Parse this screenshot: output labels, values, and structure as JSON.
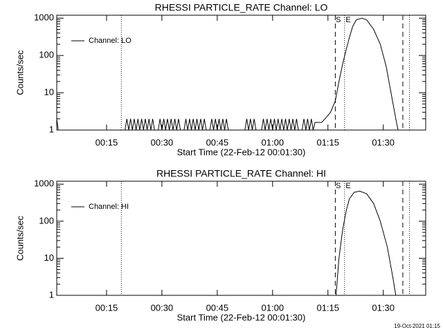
{
  "chart_data": [
    {
      "type": "line",
      "title": "RHESSI PARTICLE_RATE Channel: LO",
      "xlabel": "Start Time (22-Feb-12 00:01:30)",
      "ylabel": "Counts/sec",
      "ylog": true,
      "legend": "upper left",
      "xlim": [
        1.5,
        101.5
      ],
      "ylim": [
        1,
        1200
      ],
      "xticks": [
        {
          "value": 15,
          "label": "00:15"
        },
        {
          "value": 30,
          "label": "00:30"
        },
        {
          "value": 45,
          "label": "00:45"
        },
        {
          "value": 60,
          "label": "01:00"
        },
        {
          "value": 75,
          "label": "01:15"
        },
        {
          "value": 90,
          "label": "01:30"
        }
      ],
      "yticks": [
        1,
        10,
        100,
        1000
      ],
      "vlines": [
        {
          "x": 19,
          "style": "dotted"
        },
        {
          "x": 77,
          "style": "dashed"
        },
        {
          "x": 79.5,
          "style": "dotted"
        },
        {
          "x": 95.3,
          "style": "dashed"
        },
        {
          "x": 97.1,
          "style": "dotted"
        }
      ],
      "annotations": [
        {
          "text": "S",
          "x": 77.8
        },
        {
          "text": "E",
          "x": 80.5
        }
      ],
      "series": [
        {
          "name": "Channel: LO",
          "color": "#000000",
          "x": [
            1.5,
            1.9,
            20,
            20.5,
            21,
            21.5,
            22,
            22.5,
            23,
            23.5,
            24,
            24.5,
            25,
            25.5,
            26,
            26.5,
            27,
            27.5,
            28,
            29,
            29.5,
            30,
            30.5,
            31,
            31.5,
            32,
            32.5,
            33,
            33.5,
            34,
            34.5,
            35,
            36,
            36.5,
            37,
            37.5,
            38,
            38.5,
            39,
            39.5,
            40,
            40.5,
            41,
            41.5,
            42,
            43,
            43.5,
            44,
            44.5,
            45,
            45.5,
            46,
            46.5,
            47,
            47.5,
            48,
            52.5,
            53,
            53.5,
            54,
            54.5,
            55,
            55.5,
            57,
            57.5,
            58,
            58.5,
            59,
            59.5,
            60,
            60.5,
            61,
            61.5,
            62,
            62.5,
            63,
            63.5,
            64,
            64.5,
            65,
            65.5,
            66,
            66.5,
            67,
            68,
            68.5,
            69,
            69.5,
            70,
            70.5,
            71,
            71.5,
            73.3,
            74.2,
            75.7,
            77,
            78,
            79,
            80,
            80.8,
            81.7,
            82.7,
            84.2,
            85.5,
            87.4,
            89.2,
            90.8,
            92.1,
            93.4,
            94,
            101.5
          ],
          "values": [
            2,
            1,
            1,
            2,
            1,
            2,
            1,
            2,
            1,
            2,
            1,
            2,
            1,
            2,
            1,
            2,
            1,
            2,
            1,
            1,
            2,
            1,
            2,
            1,
            2,
            1,
            2,
            1,
            2,
            1,
            2,
            1,
            1,
            2,
            1,
            2,
            1,
            2,
            1,
            2,
            1,
            2,
            1,
            2,
            1,
            1,
            2,
            1,
            2,
            1,
            2,
            1,
            2,
            1,
            2,
            1,
            1,
            2,
            1,
            2,
            1,
            2,
            1,
            1,
            2,
            1,
            2,
            1,
            2,
            1,
            2,
            1,
            2,
            1,
            2,
            1,
            2,
            1,
            2,
            1,
            2,
            1,
            2,
            1,
            1,
            2,
            1,
            2,
            1,
            2,
            1,
            1.6,
            1.6,
            2,
            3,
            6,
            20,
            60,
            150,
            300,
            600,
            900,
            1000,
            900,
            500,
            200,
            50,
            10,
            2,
            1,
            1
          ]
        }
      ]
    },
    {
      "type": "line",
      "title": "RHESSI PARTICLE_RATE Channel: HI",
      "xlabel": "Start Time (22-Feb-12 00:01:30)",
      "ylabel": "Counts/sec",
      "ylog": true,
      "legend": "upper left",
      "xlim": [
        1.5,
        101.5
      ],
      "ylim": [
        1,
        1200
      ],
      "xticks": [
        {
          "value": 15,
          "label": "00:15"
        },
        {
          "value": 30,
          "label": "00:30"
        },
        {
          "value": 45,
          "label": "00:45"
        },
        {
          "value": 60,
          "label": "01:00"
        },
        {
          "value": 75,
          "label": "01:15"
        },
        {
          "value": 90,
          "label": "01:30"
        }
      ],
      "yticks": [
        1,
        10,
        100,
        1000
      ],
      "vlines": [
        {
          "x": 19,
          "style": "dotted"
        },
        {
          "x": 77,
          "style": "dashed"
        },
        {
          "x": 79.5,
          "style": "dotted"
        },
        {
          "x": 95.3,
          "style": "dashed"
        },
        {
          "x": 97.1,
          "style": "dotted"
        }
      ],
      "annotations": [
        {
          "text": "S",
          "x": 77.8
        },
        {
          "text": "E",
          "x": 80.5
        }
      ],
      "series": [
        {
          "name": "Channel: HI",
          "color": "#000000",
          "x": [
            1.5,
            77.2,
            78,
            79,
            80,
            80.8,
            82.1,
            83.6,
            85.5,
            87.4,
            89.2,
            91.1,
            92.6,
            93.4,
            101.5
          ],
          "values": [
            1,
            1,
            10,
            60,
            200,
            400,
            600,
            650,
            550,
            300,
            100,
            20,
            3,
            1,
            1
          ]
        }
      ]
    }
  ],
  "footer": "19-Oct-2021 01:15"
}
